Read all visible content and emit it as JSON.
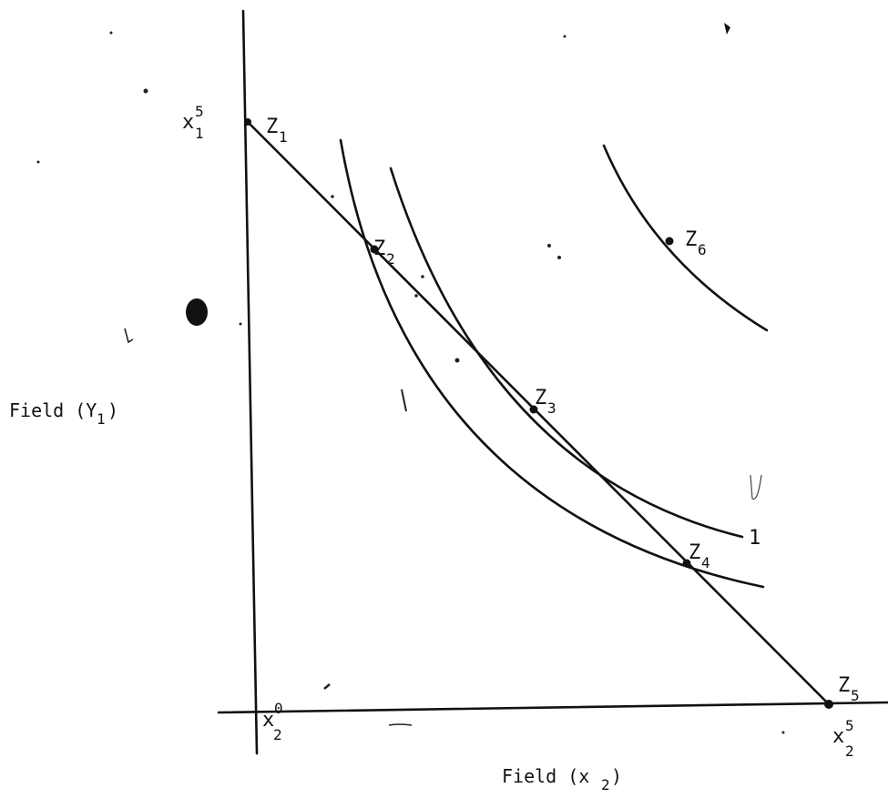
{
  "diagram": {
    "y_axis_title": "Field (Y",
    "y_axis_title_sub": "1",
    "y_axis_title_close": ")",
    "x_axis_title": "Field (x",
    "x_axis_title_sub": "2",
    "x_axis_title_close": ")",
    "y_intercept_label": {
      "base": "x",
      "sup": "5",
      "sub": "1"
    },
    "origin_label": {
      "base": "x",
      "sup": "0",
      "sub": "2"
    },
    "x_intercept_label": {
      "base": "x",
      "sup": "5",
      "sub": "2"
    },
    "curve_label": "1",
    "points": [
      {
        "base": "Z",
        "sub": "1"
      },
      {
        "base": "Z",
        "sub": "2"
      },
      {
        "base": "Z",
        "sub": "3"
      },
      {
        "base": "Z",
        "sub": "4"
      },
      {
        "base": "Z",
        "sub": "5"
      },
      {
        "base": "Z",
        "sub": "6"
      }
    ]
  }
}
